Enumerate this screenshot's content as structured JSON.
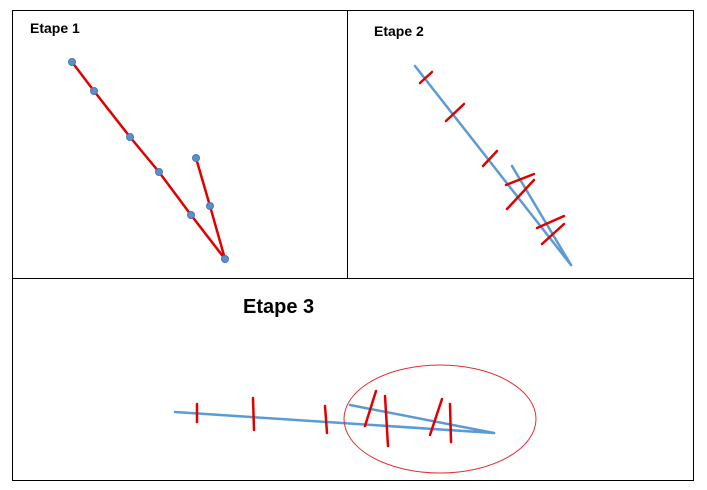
{
  "panels": [
    {
      "label": "Etape 1"
    },
    {
      "label": "Etape 2"
    },
    {
      "label": "Etape 3"
    }
  ],
  "colors": {
    "border": "#000000",
    "polyline": "#e00000",
    "vertex": "#5b8fcf",
    "vertex_outline": "#4a78b0",
    "blue_line": "#5b9bd5",
    "tick": "#e00000",
    "highlight_ellipse": "#e03030"
  }
}
